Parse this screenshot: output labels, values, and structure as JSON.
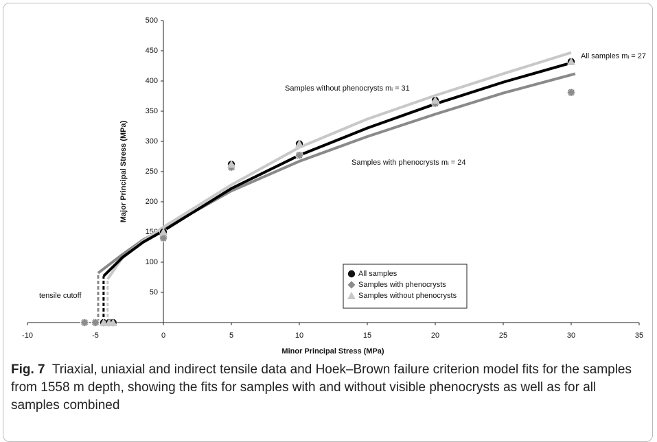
{
  "chart_data": {
    "type": "scatter",
    "xlabel": "Minor Principal Stress (MPa)",
    "ylabel": "Major Principal Stress (MPa)",
    "xlim": [
      -10,
      35
    ],
    "xticks": [
      -10,
      -5,
      0,
      5,
      10,
      15,
      20,
      25,
      30,
      35
    ],
    "ylim": [
      0,
      500
    ],
    "yticks": [
      50,
      100,
      150,
      200,
      250,
      300,
      350,
      400,
      450,
      500
    ],
    "legend": "center",
    "series": [
      {
        "name": "All samples",
        "color": "#111111",
        "marker": "circle",
        "x": [
          -5.8,
          -5.0,
          -4.4,
          -4.0,
          -3.7,
          0,
          0,
          5,
          5,
          10,
          10,
          20,
          20,
          30,
          30
        ],
        "values": [
          0,
          0,
          0,
          0,
          0,
          140,
          150,
          262,
          257,
          296,
          277,
          368,
          363,
          432,
          381
        ]
      },
      {
        "name": "Samples with phenocrysts",
        "color": "#8c8c8c",
        "marker": "diamond",
        "x": [
          -5.8,
          -5.0,
          0,
          5,
          10,
          20,
          30
        ],
        "values": [
          0,
          0,
          140,
          257,
          277,
          363,
          381
        ]
      },
      {
        "name": "Samples without phenocrysts",
        "color": "#c8c8c8",
        "marker": "triangle",
        "x": [
          -4.4,
          -4.0,
          -3.7,
          0,
          5,
          10,
          20,
          30
        ],
        "values": [
          0,
          0,
          0,
          150,
          262,
          296,
          368,
          432
        ]
      }
    ],
    "fits": [
      {
        "color": "#8a8a8a",
        "parts": [
          {
            "style": "dashed",
            "x": [
              -4.8,
              -4.8
            ],
            "values": [
              0,
              82
            ]
          },
          {
            "style": "solid",
            "x": [
              -4.8,
              -3,
              -1.5,
              0,
              5,
              10,
              15,
              20,
              25,
              30.3
            ],
            "values": [
              82,
              113,
              137,
              155,
              218,
              267,
              308,
              345,
              380,
              412
            ]
          }
        ]
      },
      {
        "color": "#c8c8c8",
        "parts": [
          {
            "style": "dashed",
            "x": [
              -4.1,
              -4.1
            ],
            "values": [
              0,
              72
            ]
          },
          {
            "style": "solid",
            "x": [
              -4.1,
              -3,
              -1.5,
              0,
              5,
              10,
              15,
              20,
              25,
              30
            ],
            "values": [
              72,
              108,
              135,
              158,
              228,
              290,
              337,
              376,
              412,
              447
            ]
          }
        ]
      },
      {
        "color": "#000000",
        "parts": [
          {
            "style": "dashed",
            "x": [
              -4.4,
              -4.4
            ],
            "values": [
              0,
              77
            ]
          },
          {
            "style": "solid",
            "x": [
              -4.4,
              -3,
              -1.5,
              0,
              5,
              10,
              15,
              20,
              25,
              30
            ],
            "values": [
              77,
              108,
              133,
              152,
              222,
              277,
              322,
              362,
              398,
              430
            ]
          }
        ]
      }
    ],
    "annotations": [
      "tensile cutoff",
      "Samples without phenocrysts mᵢ = 31",
      "Samples with phenocrysts mᵢ = 24",
      "All samples mᵢ = 27"
    ]
  },
  "caption": {
    "label": "Fig. 7",
    "text": "Triaxial, uniaxial and indirect tensile data and Hoek–Brown failure criterion model fits for the samples from 1558 m depth, showing the fits for samples with and without visible phenocrysts as well as for all samples combined"
  }
}
